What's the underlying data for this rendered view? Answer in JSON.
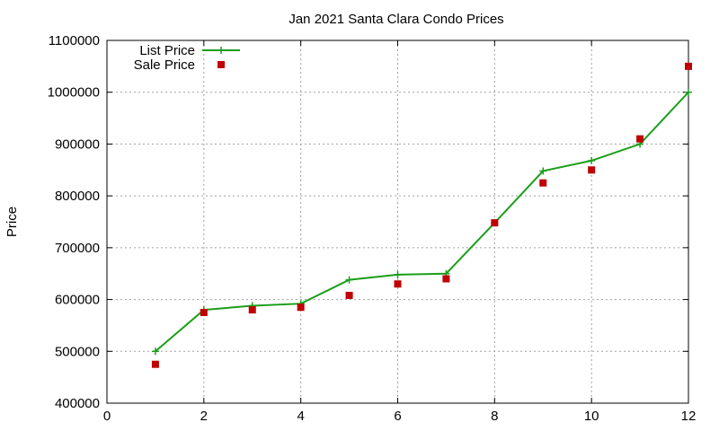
{
  "chart_data": {
    "type": "line",
    "title": "Jan 2021 Santa Clara Condo Prices",
    "xlabel": "",
    "ylabel": "Price",
    "xlim": [
      0,
      12
    ],
    "ylim": [
      400000,
      1100000
    ],
    "xticks": [
      0,
      2,
      4,
      6,
      8,
      10,
      12
    ],
    "yticks": [
      400000,
      500000,
      600000,
      700000,
      800000,
      900000,
      1000000,
      1100000
    ],
    "grid": true,
    "legend_position": "top-left",
    "x": [
      1,
      2,
      3,
      4,
      5,
      6,
      7,
      8,
      9,
      10,
      11,
      12
    ],
    "series": [
      {
        "name": "List Price",
        "style": "line-with-plus-markers",
        "color": "#1a9e1a",
        "values": [
          500000,
          580000,
          588000,
          592000,
          638000,
          648000,
          650000,
          748000,
          848000,
          868000,
          900000,
          1000000
        ]
      },
      {
        "name": "Sale Price",
        "style": "square-markers",
        "color": "#c00000",
        "values": [
          475000,
          575000,
          580000,
          585000,
          608000,
          630000,
          640000,
          748000,
          825000,
          850000,
          910000,
          1050000
        ]
      }
    ]
  }
}
